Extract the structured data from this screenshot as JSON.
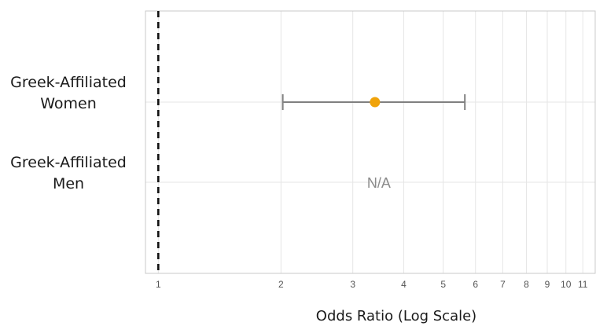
{
  "chart_data": {
    "type": "forest",
    "xlabel": "Odds Ratio (Log Scale)",
    "x_scale": "log",
    "xlim": [
      0.93,
      11.8
    ],
    "x_ticks": [
      1,
      2,
      3,
      4,
      5,
      6,
      7,
      8,
      9,
      10,
      11
    ],
    "x_tick_labels": [
      "1",
      "2",
      "3",
      "4",
      "5",
      "6",
      "7",
      "8",
      "9",
      "10",
      "11"
    ],
    "reference_line": 1,
    "grid": true,
    "categories": [
      {
        "label_lines": [
          "Greek-Affiliated",
          "Women"
        ],
        "estimate": 3.4,
        "ci_low": 2.02,
        "ci_high": 5.65,
        "note": ""
      },
      {
        "label_lines": [
          "Greek-Affiliated",
          "Men"
        ],
        "estimate": null,
        "ci_low": null,
        "ci_high": null,
        "note": "N/A"
      }
    ],
    "colors": {
      "point": "#f0a30a",
      "errorbar": "#808080",
      "grid": "#e6e6e6",
      "frame": "#c8c8c8",
      "reference": "#111111"
    }
  }
}
